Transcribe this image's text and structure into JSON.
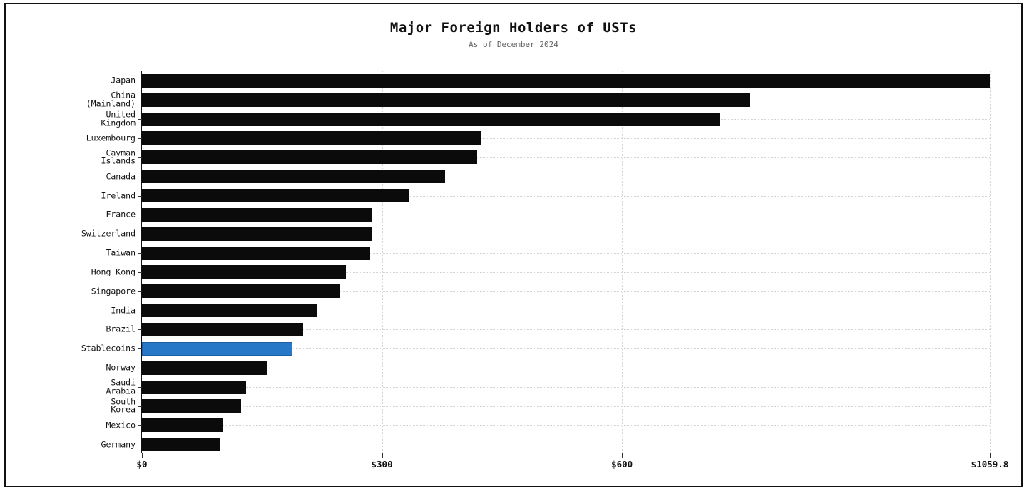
{
  "chart_data": {
    "type": "bar",
    "orientation": "horizontal",
    "title": "Major Foreign Holders of USTs",
    "subtitle": "As of December 2024",
    "unit": "USD billions",
    "categories": [
      "Japan",
      "China\n(Mainland)",
      "United\nKingdom",
      "Luxembourg",
      "Cayman\nIslands",
      "Canada",
      "Ireland",
      "France",
      "Switzerland",
      "Taiwan",
      "Hong Kong",
      "Singapore",
      "India",
      "Brazil",
      "Stablecoins",
      "Norway",
      "Saudi\nArabia",
      "South\nKorea",
      "Mexico",
      "Germany"
    ],
    "values": [
      1059.8,
      759.0,
      722.7,
      424.0,
      419.0,
      379.0,
      333.0,
      288.0,
      288.0,
      285.0,
      255.0,
      248.0,
      219.0,
      201.0,
      188.0,
      157.0,
      130.0,
      124.0,
      102.0,
      97.0
    ],
    "highlight_category": "Stablecoins",
    "colors": {
      "bar": "#0b0b0b",
      "highlight": "#2878c8",
      "grid": "#d4d4d4",
      "subtitle": "#666666"
    },
    "xlim": [
      0,
      1059.8
    ],
    "x_ticks": [
      {
        "label": "$0",
        "value": 0
      },
      {
        "label": "$300",
        "value": 300
      },
      {
        "label": "$600",
        "value": 600
      },
      {
        "label": "$1059.8",
        "value": 1059.8
      }
    ],
    "grid": "dotted, horizontal per category and vertical at x ticks",
    "legend": "none"
  }
}
